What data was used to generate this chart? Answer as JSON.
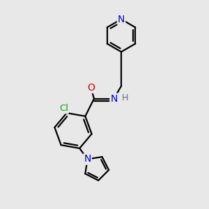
{
  "bg_color": "#e8e8e8",
  "atom_colors": {
    "N": "#0000cc",
    "O": "#cc0000",
    "Cl": "#00aa00",
    "C": "#000000",
    "H": "#607080"
  },
  "bond_color": "#000000",
  "bond_width": 1.6,
  "figsize": [
    3.0,
    3.0
  ],
  "dpi": 100
}
